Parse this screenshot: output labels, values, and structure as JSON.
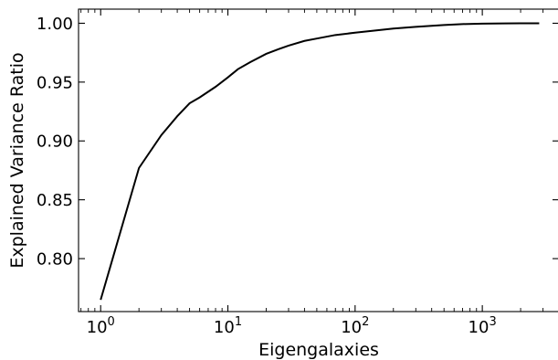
{
  "chart_data": {
    "type": "line",
    "xlabel": "Eigengalaxies",
    "ylabel": "Explained Variance Ratio",
    "x_scale": "log",
    "xlim": [
      0.67,
      4000
    ],
    "ylim": [
      0.755,
      1.012
    ],
    "grid": false,
    "line_color": "#000000",
    "x_ticks": [
      {
        "value": 1,
        "base": "10",
        "exp": "0"
      },
      {
        "value": 10,
        "base": "10",
        "exp": "1"
      },
      {
        "value": 100,
        "base": "10",
        "exp": "2"
      },
      {
        "value": 1000,
        "base": "10",
        "exp": "3"
      }
    ],
    "y_ticks": [
      {
        "value": 0.8,
        "label": "0.80"
      },
      {
        "value": 0.85,
        "label": "0.85"
      },
      {
        "value": 0.9,
        "label": "0.90"
      },
      {
        "value": 0.95,
        "label": "0.95"
      },
      {
        "value": 1.0,
        "label": "1.00"
      }
    ],
    "series": [
      {
        "x": [
          1,
          2,
          3,
          4,
          5,
          6,
          8,
          10,
          12,
          15,
          20,
          25,
          30,
          40,
          50,
          70,
          100,
          150,
          200,
          300,
          500,
          700,
          1000,
          1500,
          2000,
          2800
        ],
        "y": [
          0.765,
          0.877,
          0.905,
          0.921,
          0.932,
          0.937,
          0.946,
          0.954,
          0.961,
          0.967,
          0.974,
          0.978,
          0.981,
          0.985,
          0.987,
          0.99,
          0.992,
          0.994,
          0.9955,
          0.997,
          0.9985,
          0.9993,
          0.9997,
          0.9999,
          1.0,
          1.0
        ]
      }
    ]
  }
}
